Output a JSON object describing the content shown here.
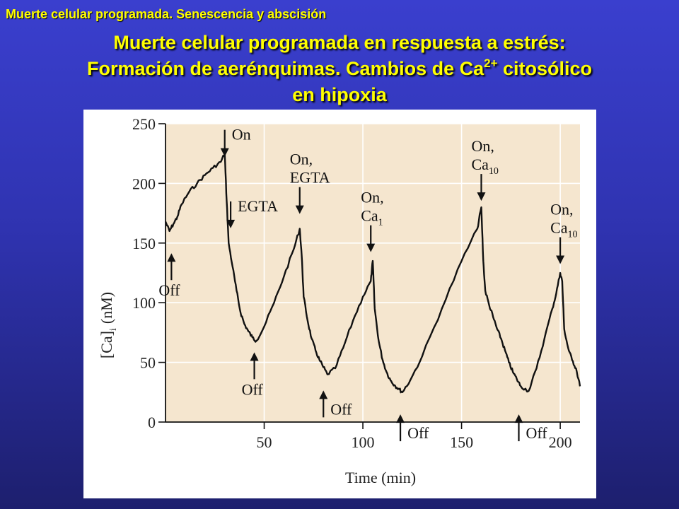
{
  "header": {
    "section_title": "Muerte celular programada. Senescencia y abscisión",
    "title_line1": "Muerte celular programada en  respuesta a estrés:",
    "title_line2_pre": "Formación de aerénquimas. Cambios de Ca",
    "title_line2_sup": "2+",
    "title_line2_post": " citosólico",
    "title_line3": "en hipoxia"
  },
  "chart_data": {
    "type": "line",
    "xlabel": "Time (min)",
    "ylabel_main": "[Ca]",
    "ylabel_sub": "i",
    "ylabel_unit": "(nM)",
    "xlim": [
      0,
      210
    ],
    "ylim": [
      0,
      250
    ],
    "x_ticks": [
      50,
      100,
      150,
      200
    ],
    "y_ticks": [
      0,
      50,
      100,
      150,
      200,
      250
    ],
    "grid": true,
    "colors": {
      "panel": "#f5e6cf",
      "line": "#111111",
      "grid": "#ffffff"
    },
    "series": [
      {
        "x": [
          0,
          2,
          4,
          6,
          8,
          12,
          16,
          20,
          24,
          28,
          30,
          31,
          32,
          34,
          36,
          38,
          40,
          42,
          44,
          46,
          50,
          55,
          60,
          65,
          68,
          69,
          70,
          72,
          74,
          76,
          78,
          80,
          82,
          86,
          90,
          95,
          100,
          104,
          105,
          106,
          108,
          110,
          112,
          114,
          116,
          118,
          120,
          124,
          130,
          140,
          150,
          158,
          160,
          161,
          162,
          164,
          166,
          168,
          170,
          172,
          174,
          176,
          178,
          180,
          184,
          188,
          192,
          196,
          198,
          200,
          201,
          202,
          204,
          206,
          208,
          210
        ],
        "y": [
          168,
          160,
          166,
          172,
          182,
          193,
          200,
          207,
          213,
          218,
          225,
          185,
          150,
          130,
          110,
          92,
          82,
          76,
          71,
          68,
          80,
          100,
          122,
          145,
          162,
          140,
          105,
          85,
          70,
          60,
          52,
          46,
          40,
          45,
          62,
          85,
          105,
          118,
          135,
          95,
          68,
          52,
          42,
          35,
          31,
          28,
          25,
          35,
          55,
          95,
          135,
          162,
          180,
          135,
          110,
          98,
          88,
          78,
          70,
          60,
          50,
          42,
          36,
          30,
          26,
          45,
          70,
          95,
          108,
          125,
          118,
          78,
          62,
          52,
          45,
          30
        ]
      }
    ],
    "annotations": [
      {
        "x": 30,
        "dir": "down",
        "level": 220,
        "lines": [
          "On"
        ]
      },
      {
        "x": 33,
        "dir": "down",
        "level": 160,
        "lines": [
          "EGTA"
        ]
      },
      {
        "x": 3,
        "dir": "up",
        "level": 145,
        "lines": [
          "Off"
        ]
      },
      {
        "x": 45,
        "dir": "up",
        "level": 62,
        "lines": [
          "Off"
        ]
      },
      {
        "x": 68,
        "dir": "down",
        "level": 172,
        "lines": [
          "On,",
          "EGTA"
        ]
      },
      {
        "x": 80,
        "dir": "up",
        "level": 30,
        "lines": [
          "Off"
        ]
      },
      {
        "x": 104,
        "dir": "down",
        "level": 140,
        "lines": [
          "On,",
          "Ca",
          "1"
        ]
      },
      {
        "x": 119,
        "dir": "up",
        "level": 10,
        "lines": [
          "Off"
        ]
      },
      {
        "x": 160,
        "dir": "down",
        "level": 183,
        "lines": [
          "On,",
          "Ca",
          "10"
        ]
      },
      {
        "x": 179,
        "dir": "up",
        "level": 10,
        "lines": [
          "Off"
        ]
      },
      {
        "x": 200,
        "dir": "down",
        "level": 130,
        "lines": [
          "On,",
          "Ca",
          "10"
        ]
      }
    ]
  }
}
